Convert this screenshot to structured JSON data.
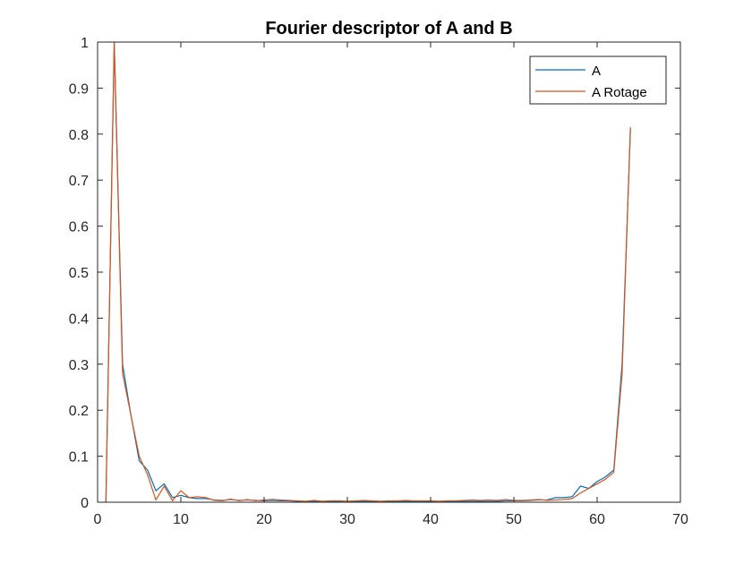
{
  "chart_data": {
    "type": "line",
    "title": "Fourier descriptor of A and B",
    "xlabel": "",
    "ylabel": "",
    "xlim": [
      0,
      70
    ],
    "ylim": [
      0,
      1
    ],
    "xticks": [
      0,
      10,
      20,
      30,
      40,
      50,
      60,
      70
    ],
    "yticks": [
      0,
      0.1,
      0.2,
      0.3,
      0.4,
      0.5,
      0.6,
      0.7,
      0.8,
      0.9,
      1
    ],
    "ytick_labels": [
      "0",
      "0.1",
      "0.2",
      "0.3",
      "0.4",
      "0.5",
      "0.6",
      "0.7",
      "0.8",
      "0.9",
      "1"
    ],
    "grid": false,
    "legend_position": "top-right",
    "x": [
      1,
      2,
      3,
      4,
      5,
      6,
      7,
      8,
      9,
      10,
      11,
      12,
      13,
      14,
      15,
      16,
      17,
      18,
      19,
      20,
      21,
      22,
      23,
      24,
      25,
      26,
      27,
      28,
      29,
      30,
      31,
      32,
      33,
      34,
      35,
      36,
      37,
      38,
      39,
      40,
      41,
      42,
      43,
      44,
      45,
      46,
      47,
      48,
      49,
      50,
      51,
      52,
      53,
      54,
      55,
      56,
      57,
      58,
      59,
      60,
      61,
      62,
      63,
      64
    ],
    "series": [
      {
        "name": "A",
        "color": "#0072BD",
        "values": [
          0,
          1,
          0.3,
          0.19,
          0.09,
          0.07,
          0.025,
          0.04,
          0.01,
          0.015,
          0.01,
          0.008,
          0.008,
          0.005,
          0.004,
          0.006,
          0.004,
          0.005,
          0.004,
          0.003,
          0.004,
          0.003,
          0.003,
          0.002,
          0.002,
          0.002,
          0.002,
          0.002,
          0.002,
          0.002,
          0.002,
          0.002,
          0.002,
          0.002,
          0.002,
          0.002,
          0.002,
          0.002,
          0.002,
          0.002,
          0.002,
          0.002,
          0.002,
          0.002,
          0.002,
          0.002,
          0.002,
          0.002,
          0.003,
          0.003,
          0.003,
          0.004,
          0.005,
          0.005,
          0.01,
          0.01,
          0.012,
          0.035,
          0.03,
          0.045,
          0.055,
          0.07,
          0.3,
          0.81
        ]
      },
      {
        "name": "A Rotage",
        "color": "#D95319",
        "values": [
          0,
          1,
          0.28,
          0.19,
          0.1,
          0.06,
          0.005,
          0.035,
          0.003,
          0.025,
          0.01,
          0.012,
          0.01,
          0.004,
          0.003,
          0.007,
          0.003,
          0.006,
          0.003,
          0.005,
          0.006,
          0.005,
          0.004,
          0.003,
          0.002,
          0.004,
          0.002,
          0.003,
          0.003,
          0.002,
          0.003,
          0.004,
          0.003,
          0.002,
          0.003,
          0.003,
          0.004,
          0.003,
          0.003,
          0.003,
          0.002,
          0.003,
          0.003,
          0.004,
          0.005,
          0.004,
          0.005,
          0.004,
          0.006,
          0.004,
          0.004,
          0.005,
          0.006,
          0.004,
          0.005,
          0.006,
          0.008,
          0.02,
          0.03,
          0.04,
          0.05,
          0.065,
          0.28,
          0.815
        ]
      }
    ]
  }
}
